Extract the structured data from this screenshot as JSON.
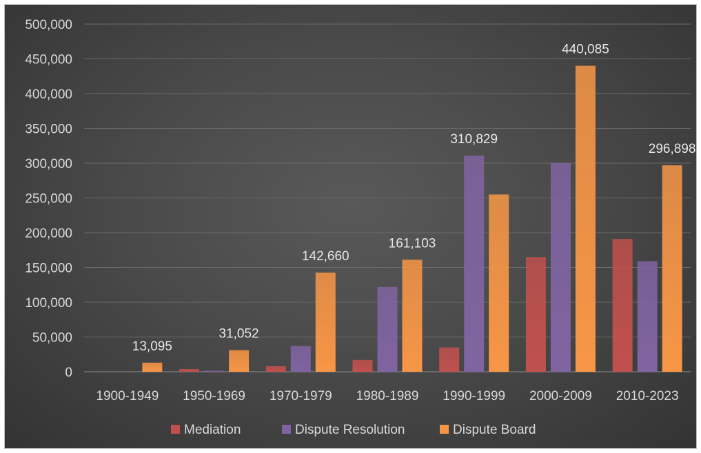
{
  "chart_data": {
    "type": "bar",
    "title": "",
    "xlabel": "",
    "ylabel": "",
    "categories": [
      "1900-1949",
      "1950-1969",
      "1970-1979",
      "1980-1989",
      "1990-1999",
      "2000-2009",
      "2010-2023"
    ],
    "series": [
      {
        "name": "Mediation",
        "color": "#c0504d",
        "values": [
          0,
          4000,
          8000,
          17000,
          35000,
          165000,
          191000
        ]
      },
      {
        "name": "Dispute Resolution",
        "color": "#8064a2",
        "values": [
          0,
          1500,
          37000,
          122000,
          310829,
          300000,
          159000
        ]
      },
      {
        "name": "Dispute Board",
        "color": "#f79646",
        "values": [
          13095,
          31052,
          142660,
          161103,
          255000,
          440085,
          296898
        ]
      }
    ],
    "data_labels": [
      {
        "category": "1900-1949",
        "text": "13,095"
      },
      {
        "category": "1950-1969",
        "text": "31,052"
      },
      {
        "category": "1970-1979",
        "text": "142,660"
      },
      {
        "category": "1980-1989",
        "text": "161,103"
      },
      {
        "category": "1990-1999",
        "text": "310,829"
      },
      {
        "category": "2000-2009",
        "text": "440,085"
      },
      {
        "category": "2010-2023",
        "text": "296,898"
      }
    ],
    "yticks": [
      "0",
      "50,000",
      "100,000",
      "150,000",
      "200,000",
      "250,000",
      "300,000",
      "350,000",
      "400,000",
      "450,000",
      "500,000"
    ],
    "ylim": [
      0,
      500000
    ],
    "grid": true,
    "legend_position": "bottom",
    "background": "#4a4a4a"
  }
}
